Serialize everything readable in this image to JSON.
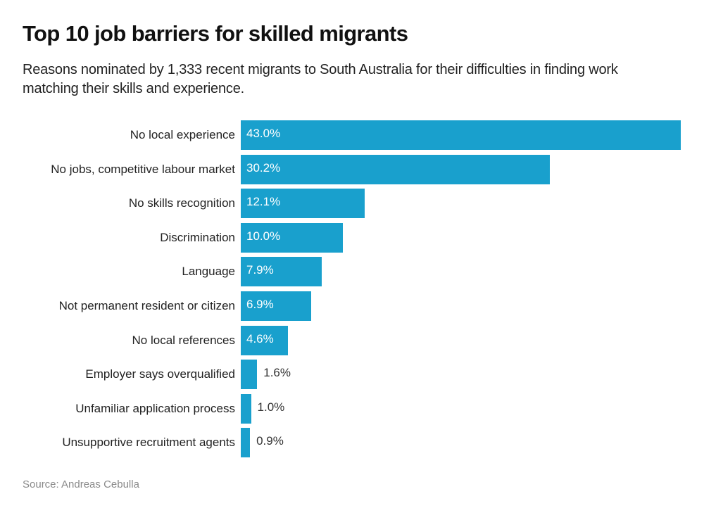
{
  "title": "Top 10 job barriers for skilled migrants",
  "subtitle": "Reasons nominated by 1,333 recent migrants to South Australia for their difficulties in finding work matching their skills and experience.",
  "source": "Source: Andreas Cebulla",
  "colors": {
    "bar": "#19a0cd",
    "inside_label": "#ffffff",
    "outside_label": "#333333",
    "source": "#8a8a8a"
  },
  "chart_data": {
    "type": "bar",
    "orientation": "horizontal",
    "title": "Top 10 job barriers for skilled migrants",
    "subtitle": "Reasons nominated by 1,333 recent migrants to South Australia for their difficulties in finding work matching their skills and experience.",
    "xlabel": "",
    "ylabel": "",
    "unit": "%",
    "categories": [
      "No local experience",
      "No jobs, competitive labour market",
      "No skills recognition",
      "Discrimination",
      "Language",
      "Not permanent resident or citizen",
      "No local references",
      "Employer says overqualified",
      "Unfamiliar application process",
      "Unsupportive recruitment agents"
    ],
    "values": [
      43.0,
      30.2,
      12.1,
      10.0,
      7.9,
      6.9,
      4.6,
      1.6,
      1.0,
      0.9
    ],
    "value_labels": [
      "43.0%",
      "30.2%",
      "12.1%",
      "10.0%",
      "7.9%",
      "6.9%",
      "4.6%",
      "1.6%",
      "1.0%",
      "0.9%"
    ],
    "xlim": [
      0,
      43.0
    ],
    "grid": false,
    "legend": null,
    "source": "Source: Andreas Cebulla"
  }
}
